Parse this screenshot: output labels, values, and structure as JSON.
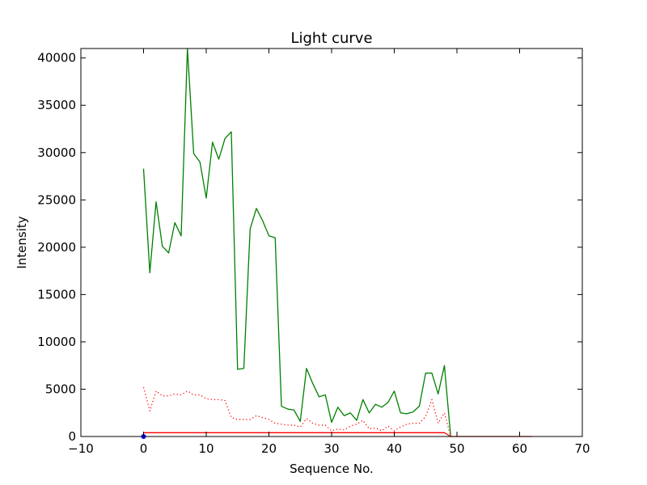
{
  "chart_data": {
    "type": "line",
    "title": "Light curve",
    "xlabel": "Sequence No.",
    "ylabel": "Intensity",
    "xlim": [
      -10,
      70
    ],
    "ylim": [
      0,
      41000
    ],
    "xticks": [
      "−10",
      "0",
      "10",
      "20",
      "30",
      "40",
      "50",
      "60",
      "70"
    ],
    "xtick_values": [
      -10,
      0,
      10,
      20,
      30,
      40,
      50,
      60,
      70
    ],
    "yticks": [
      "0",
      "5000",
      "10000",
      "15000",
      "20000",
      "25000",
      "30000",
      "35000",
      "40000"
    ],
    "ytick_values": [
      0,
      5000,
      10000,
      15000,
      20000,
      25000,
      30000,
      35000,
      40000
    ],
    "grid": false,
    "series": [
      {
        "color": "#008000",
        "linestyle": "solid",
        "x": [
          0,
          1,
          2,
          3,
          4,
          5,
          6,
          7,
          8,
          9,
          10,
          11,
          12,
          13,
          14,
          15,
          16,
          17,
          18,
          19,
          20,
          21,
          22,
          23,
          24,
          25,
          26,
          27,
          28,
          29,
          30,
          31,
          32,
          33,
          34,
          35,
          36,
          37,
          38,
          39,
          40,
          41,
          42,
          43,
          44,
          45,
          46,
          47,
          48,
          49
        ],
        "y": [
          28300,
          17300,
          24800,
          20100,
          19400,
          22600,
          21200,
          41000,
          29900,
          29000,
          25200,
          31100,
          29300,
          31500,
          32200,
          7100,
          7200,
          21900,
          24100,
          22800,
          21200,
          21000,
          3200,
          2900,
          2800,
          1600,
          7200,
          5600,
          4200,
          4400,
          1500,
          3100,
          2200,
          2500,
          1700,
          3900,
          2500,
          3400,
          3100,
          3600,
          4800,
          2500,
          2400,
          2600,
          3200,
          6700,
          6700,
          4500,
          7500,
          0
        ]
      },
      {
        "color": "#ff0000",
        "linestyle": "dotted",
        "x": [
          0,
          1,
          2,
          3,
          4,
          5,
          6,
          7,
          8,
          9,
          10,
          11,
          12,
          13,
          14,
          15,
          16,
          17,
          18,
          19,
          20,
          21,
          22,
          23,
          24,
          25,
          26,
          27,
          28,
          29,
          30,
          31,
          32,
          33,
          34,
          35,
          36,
          37,
          38,
          39,
          40,
          41,
          42,
          43,
          44,
          45,
          46,
          47,
          48,
          49
        ],
        "y": [
          5200,
          2700,
          4800,
          4300,
          4300,
          4500,
          4400,
          4800,
          4400,
          4400,
          4000,
          3900,
          3900,
          3800,
          2000,
          1800,
          1800,
          1800,
          2200,
          2000,
          1800,
          1400,
          1300,
          1200,
          1200,
          1000,
          1900,
          1400,
          1200,
          1200,
          600,
          800,
          700,
          1100,
          1300,
          1700,
          800,
          900,
          600,
          1100,
          600,
          1000,
          1300,
          1400,
          1400,
          2100,
          3900,
          1400,
          2500,
          0
        ]
      },
      {
        "color": "#ff0000",
        "linestyle": "solid",
        "x": [
          0,
          48,
          49,
          62
        ],
        "y": [
          400,
          400,
          0,
          0
        ]
      },
      {
        "color": "#0000ff",
        "linestyle": "marker",
        "x": [
          0
        ],
        "y": [
          0
        ]
      }
    ]
  }
}
